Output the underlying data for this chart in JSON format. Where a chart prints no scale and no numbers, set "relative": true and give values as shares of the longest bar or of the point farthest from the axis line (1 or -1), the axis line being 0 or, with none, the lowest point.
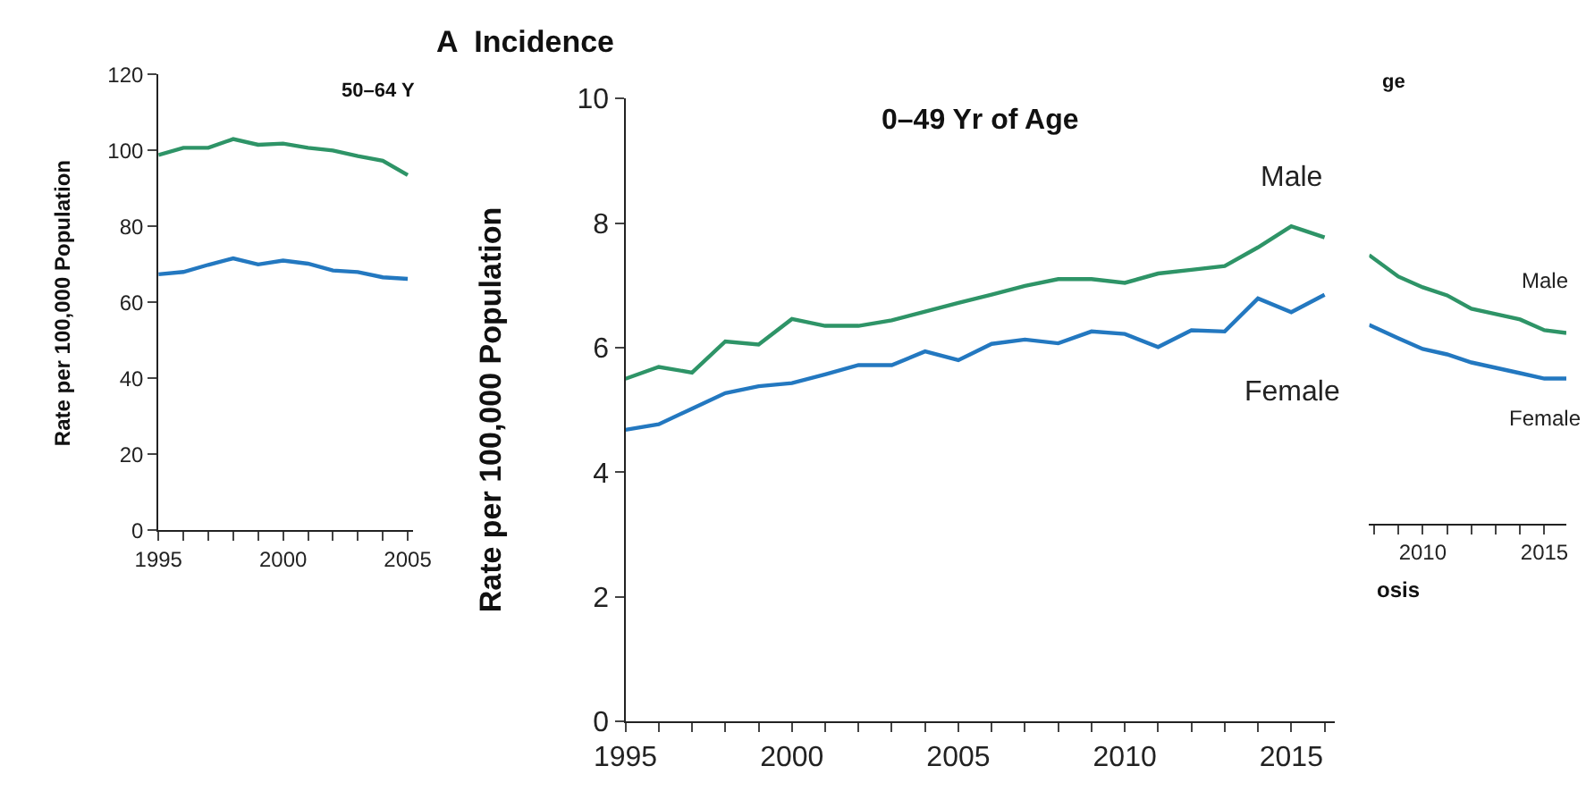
{
  "chart_data": [
    {
      "type": "line",
      "title": "50–64 Y",
      "ylabel": "Rate per 100,000 Population",
      "x": [
        1995,
        1996,
        1997,
        1998,
        1999,
        2000,
        2001,
        2002,
        2003,
        2004,
        2005
      ],
      "series": [
        {
          "color": "#2e9467",
          "values": [
            98.8,
            100.7,
            100.7,
            103,
            101.5,
            101.8,
            100.7,
            100,
            98.5,
            97.3,
            93.5
          ]
        },
        {
          "color": "#2378c0",
          "values": [
            67.4,
            68,
            69.9,
            71.6,
            70,
            71,
            70.2,
            68.4,
            68,
            66.6,
            66.2
          ]
        }
      ],
      "xlim": [
        1995,
        2005.2
      ],
      "ylim": [
        0,
        120
      ],
      "yticks": [
        0,
        20,
        40,
        60,
        80,
        100,
        120
      ],
      "xticks": [
        1995,
        {
          "value": 1996,
          "label": null
        },
        {
          "value": 1997,
          "label": null
        },
        {
          "value": 1998,
          "label": null
        },
        {
          "value": 1999,
          "label": null
        },
        2000,
        {
          "value": 2001,
          "label": null
        },
        {
          "value": 2002,
          "label": null
        },
        {
          "value": 2003,
          "label": null
        },
        {
          "value": 2004,
          "label": null
        },
        2005
      ]
    },
    {
      "type": "line",
      "title": "0–49 Yr of Age",
      "ylabel": "Rate per 100,000 Population",
      "annotations": [
        "A  Incidence"
      ],
      "x": [
        1995,
        1996,
        1997,
        1998,
        1999,
        2000,
        2001,
        2002,
        2003,
        2004,
        2005,
        2006,
        2007,
        2008,
        2009,
        2010,
        2011,
        2012,
        2013,
        2014,
        2015,
        2016
      ],
      "series": [
        {
          "name": "Male",
          "color": "#2e9467",
          "values": [
            5.5,
            5.69,
            5.6,
            6.1,
            6.05,
            6.46,
            6.35,
            6.35,
            6.44,
            6.58,
            6.72,
            6.85,
            6.99,
            7.1,
            7.1,
            7.04,
            7.19,
            7.25,
            7.31,
            7.61,
            7.95,
            7.77
          ]
        },
        {
          "name": "Female",
          "color": "#2378c0",
          "values": [
            4.68,
            4.77,
            5.02,
            5.27,
            5.38,
            5.43,
            5.57,
            5.72,
            5.72,
            5.94,
            5.8,
            6.06,
            6.13,
            6.07,
            6.26,
            6.22,
            6.01,
            6.28,
            6.26,
            6.79,
            6.57,
            6.85
          ]
        }
      ],
      "xlim": [
        1995,
        2016.3
      ],
      "ylim": [
        0,
        10
      ],
      "yticks": [
        0,
        2,
        4,
        6,
        8,
        10
      ],
      "xticks": [
        1995,
        {
          "value": 1996,
          "label": null
        },
        {
          "value": 1997,
          "label": null
        },
        {
          "value": 1998,
          "label": null
        },
        {
          "value": 1999,
          "label": null
        },
        2000,
        {
          "value": 2001,
          "label": null
        },
        {
          "value": 2002,
          "label": null
        },
        {
          "value": 2003,
          "label": null
        },
        {
          "value": 2004,
          "label": null
        },
        2005,
        {
          "value": 2006,
          "label": null
        },
        {
          "value": 2007,
          "label": null
        },
        {
          "value": 2008,
          "label": null
        },
        {
          "value": 2009,
          "label": null
        },
        2010,
        {
          "value": 2011,
          "label": null
        },
        {
          "value": 2012,
          "label": null
        },
        {
          "value": 2013,
          "label": null
        },
        {
          "value": 2014,
          "label": null
        },
        2015,
        {
          "value": 2016,
          "label": null
        }
      ]
    },
    {
      "type": "line",
      "title": "ge",
      "xlabel": "osis",
      "relative": true,
      "x": [
        2007.8,
        2009,
        2010,
        2011,
        2012,
        2013,
        2014,
        2015,
        2015.9
      ],
      "series": [
        {
          "name": "Male",
          "color": "#2e9467",
          "values": [
            1.0,
            0.92,
            0.88,
            0.85,
            0.8,
            0.78,
            0.76,
            0.72,
            0.71
          ]
        },
        {
          "name": "Female",
          "color": "#2378c0",
          "values": [
            0.74,
            0.69,
            0.65,
            0.63,
            0.6,
            0.58,
            0.56,
            0.54,
            0.54
          ]
        }
      ],
      "xlim": [
        2007.8,
        2015.9
      ],
      "xticks": [
        {
          "value": 2008,
          "label": null
        },
        {
          "value": 2009,
          "label": null
        },
        2010,
        {
          "value": 2011,
          "label": null
        },
        {
          "value": 2012,
          "label": null
        },
        {
          "value": 2013,
          "label": null
        },
        {
          "value": 2014,
          "label": null
        },
        2015
      ],
      "tick_labels": "x"
    }
  ]
}
